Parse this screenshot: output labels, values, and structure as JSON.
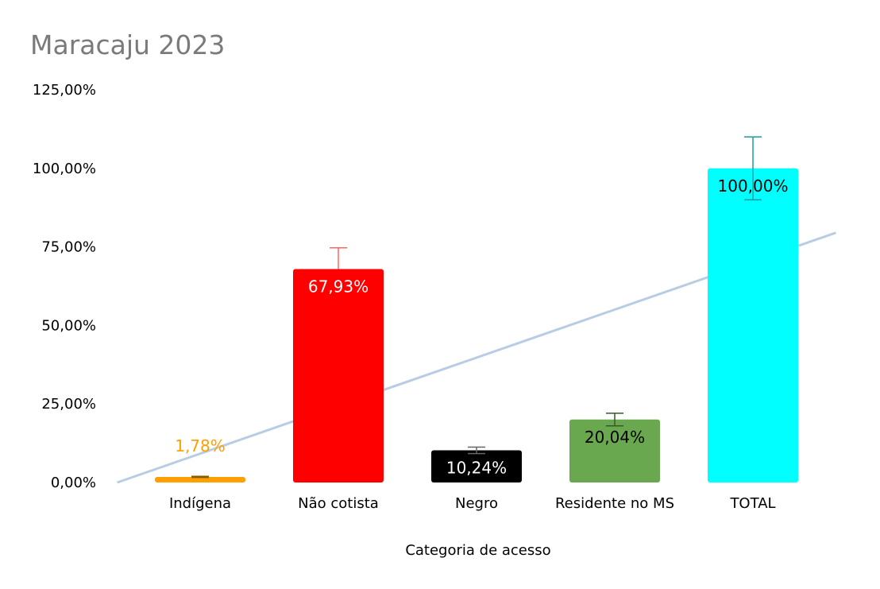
{
  "chart_data": {
    "type": "bar",
    "title": "Maracaju 2023",
    "xlabel": "Categoria de acesso",
    "ylabel": "",
    "ylim": [
      0,
      1.25
    ],
    "yticks": [
      {
        "value": 0,
        "label": "0,00%"
      },
      {
        "value": 0.25,
        "label": "25,00%"
      },
      {
        "value": 0.5,
        "label": "50,00%"
      },
      {
        "value": 0.75,
        "label": "75,00%"
      },
      {
        "value": 1.0,
        "label": "100,00%"
      },
      {
        "value": 1.25,
        "label": "125,00%"
      }
    ],
    "categories": [
      "Indígena",
      "Não cotista",
      "Negro",
      "Residente no MS",
      "TOTAL"
    ],
    "values": [
      0.0178,
      0.6793,
      0.1024,
      0.2004,
      1.0
    ],
    "data_labels": [
      "1,78%",
      "67,93%",
      "10,24%",
      "20,04%",
      "100,00%"
    ],
    "error_bars": [
      {
        "low": 0.016,
        "high": 0.0196
      },
      {
        "low": 0.6793,
        "high": 0.7472
      },
      {
        "low": 0.0922,
        "high": 0.1126
      },
      {
        "low": 0.1804,
        "high": 0.2204
      },
      {
        "low": 0.9,
        "high": 1.1
      }
    ],
    "bar_colors": [
      "#ffa000",
      "#ff0000",
      "#000000",
      "#6aa84f",
      "#00ffff"
    ],
    "label_colors": [
      "#ffa000",
      "#ffffff",
      "#ffffff",
      "#000000",
      "#000000"
    ],
    "label_position": [
      "outside",
      "inside",
      "inside",
      "inside",
      "inside"
    ],
    "error_bar_colors": [
      "#8a5a00",
      "#ff6666",
      "#666666",
      "#38572a",
      "#1a9aa0"
    ],
    "trendline": {
      "type": "linear",
      "color": "#b8cce4",
      "start": {
        "x": -0.6,
        "y": 0.0
      },
      "end": {
        "x": 4.6,
        "y": 0.795
      }
    },
    "grid": false,
    "legend": "none"
  }
}
